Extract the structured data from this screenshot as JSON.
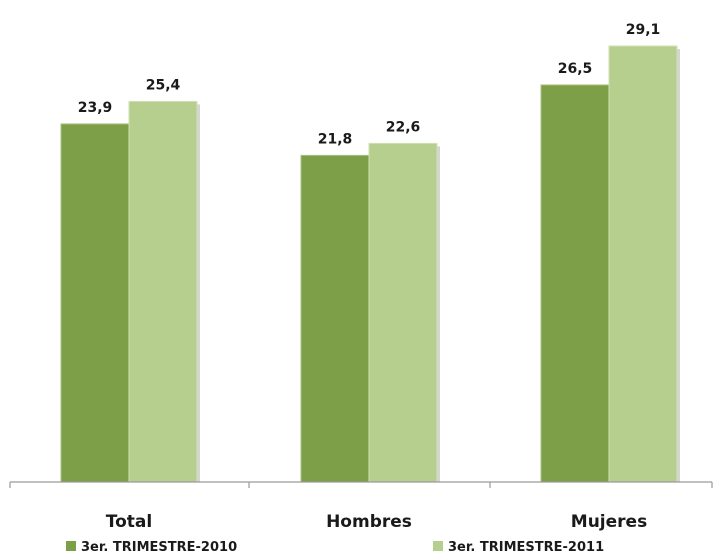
{
  "chart_data": {
    "type": "bar",
    "categories": [
      "Total",
      "Hombres",
      "Mujeres"
    ],
    "series": [
      {
        "name": "3er. TRIMESTRE-2010",
        "values": [
          23.9,
          21.8,
          26.5
        ],
        "labels": [
          "23,9",
          "21,8",
          "26,5"
        ],
        "color": "#7d9f48"
      },
      {
        "name": "3er. TRIMESTRE-2011",
        "values": [
          25.4,
          22.6,
          29.1
        ],
        "labels": [
          "25,4",
          "22,6",
          "29,1"
        ],
        "color": "#b6cf8f"
      }
    ],
    "ylim": [
      0,
      29.1
    ],
    "grid": false,
    "legend_position": "bottom"
  }
}
